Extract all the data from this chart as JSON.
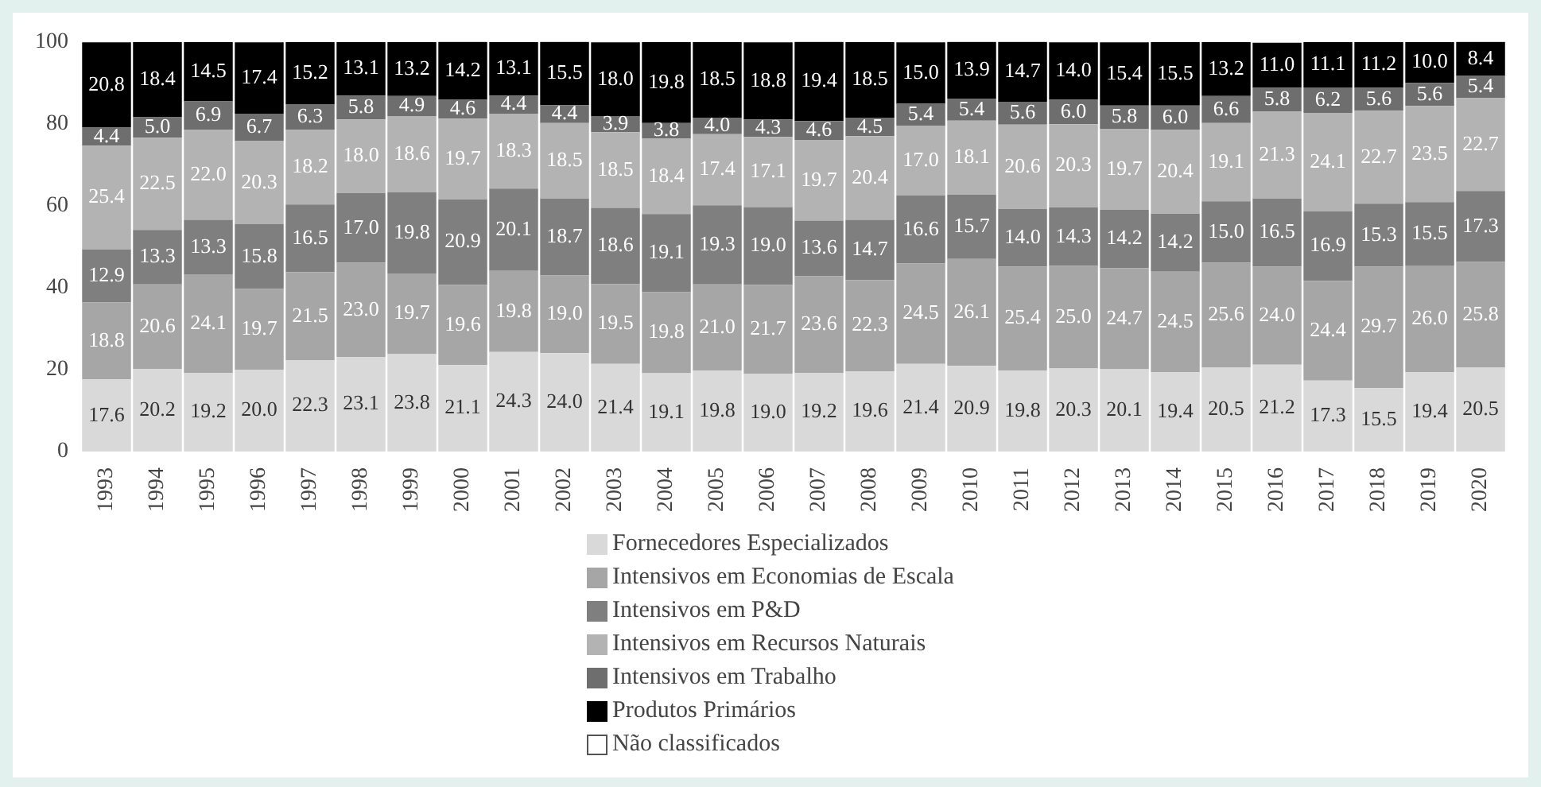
{
  "chart_data": {
    "type": "bar",
    "stacked": true,
    "legend": "bottom",
    "grid": false,
    "ylim": [
      0,
      100
    ],
    "yticks": [
      0,
      20,
      40,
      60,
      80,
      100
    ],
    "categories": [
      "1993",
      "1994",
      "1995",
      "1996",
      "1997",
      "1998",
      "1999",
      "2000",
      "2001",
      "2002",
      "2003",
      "2004",
      "2005",
      "2006",
      "2007",
      "2008",
      "2009",
      "2010",
      "2011",
      "2012",
      "2013",
      "2014",
      "2015",
      "2016",
      "2017",
      "2018",
      "2019",
      "2020"
    ],
    "series": [
      {
        "name": "Fornecedores Especializados",
        "color": "#d9d9d9",
        "values": [
          17.6,
          20.2,
          19.2,
          20.0,
          22.3,
          23.1,
          23.8,
          21.1,
          24.3,
          24.0,
          21.4,
          19.1,
          19.8,
          19.0,
          19.2,
          19.6,
          21.4,
          20.9,
          19.8,
          20.3,
          20.1,
          19.4,
          20.5,
          21.2,
          17.3,
          15.5,
          19.4,
          20.5
        ],
        "value_labels": [
          "17.6",
          "20.2",
          "19.2",
          "20.0",
          "22.3",
          "23.1",
          "23.8",
          "21.1",
          "24.3",
          "24.0",
          "21.4",
          "19.1",
          "19.8",
          "19.0",
          "19.2",
          "19.6",
          "21.4",
          "20.9",
          "19.8",
          "20.3",
          "20.1",
          "19.4",
          "20.5",
          "21.2",
          "17.3",
          "15.5",
          "19.4",
          "20.5"
        ]
      },
      {
        "name": "Intensivos em Economias de Escala",
        "color": "#a6a6a6",
        "values": [
          18.8,
          20.6,
          24.1,
          19.7,
          21.5,
          23.0,
          19.7,
          19.6,
          19.8,
          19.0,
          19.5,
          19.8,
          21.0,
          21.7,
          23.6,
          22.3,
          24.5,
          26.1,
          25.4,
          25.0,
          24.7,
          24.5,
          25.6,
          24.0,
          24.4,
          29.7,
          26.0,
          25.8
        ],
        "value_labels": [
          "18.8",
          "20.6",
          "24.1",
          "19.7",
          "21.5",
          "23.0",
          "19.7",
          "19.6",
          "19.8",
          "19.0",
          "19.5",
          "19.8",
          "21.0",
          "21.7",
          "23.6",
          "22.3",
          "24.5",
          "26.1",
          "25.4",
          "25.0",
          "24.7",
          "24.5",
          "25.6",
          "24.0",
          "24.4",
          "29.7",
          "26.0",
          "25.8"
        ]
      },
      {
        "name": "Intensivos em P&D",
        "color": "#7f7f7f",
        "values": [
          12.9,
          13.3,
          13.3,
          15.8,
          16.5,
          17.0,
          19.8,
          20.9,
          20.1,
          18.7,
          18.6,
          19.1,
          19.3,
          19.0,
          13.6,
          14.7,
          16.6,
          15.7,
          14.0,
          14.3,
          14.2,
          14.2,
          15.0,
          16.5,
          16.9,
          15.3,
          15.5,
          17.3
        ],
        "value_labels": [
          "12.9",
          "13.3",
          "13.3",
          "15.8",
          "16.5",
          "17.0",
          "19.8",
          "20.9",
          "20.1",
          "18.7",
          "18.6",
          "19.1",
          "19.3",
          "19.0",
          "13.6",
          "14.7",
          "16.6",
          "15.7",
          "14.0",
          "14.3",
          "14.2",
          "14.2",
          "15.0",
          "16.5",
          "16.9",
          "15.3",
          "15.5",
          "17.3"
        ]
      },
      {
        "name": "Intensivos em Recursos Naturais",
        "color": "#b3b3b3",
        "values": [
          25.4,
          22.5,
          22.0,
          20.3,
          18.2,
          18.0,
          18.6,
          19.7,
          18.3,
          18.5,
          18.5,
          18.4,
          17.4,
          17.1,
          19.7,
          20.4,
          17.0,
          18.1,
          20.6,
          20.3,
          19.7,
          20.4,
          19.1,
          21.3,
          24.1,
          22.7,
          23.5,
          22.7
        ],
        "value_labels": [
          "25.4",
          "22.5",
          "22.0",
          "20.3",
          "18.2",
          "18.0",
          "18.6",
          "19.7",
          "18.3",
          "18.5",
          "18.5",
          "18.4",
          "17.4",
          "17.1",
          "19.7",
          "20.4",
          "17.0",
          "18.1",
          "20.6",
          "20.3",
          "19.7",
          "20.4",
          "19.1",
          "21.3",
          "24.1",
          "22.7",
          "23.5",
          "22.7"
        ]
      },
      {
        "name": "Intensivos em Trabalho",
        "color": "#6e6e6e",
        "values": [
          4.4,
          5.0,
          6.9,
          6.7,
          6.3,
          5.8,
          4.9,
          4.6,
          4.4,
          4.4,
          3.9,
          3.8,
          4.0,
          4.3,
          4.6,
          4.5,
          5.4,
          5.4,
          5.6,
          6.0,
          5.8,
          6.0,
          6.6,
          5.8,
          6.2,
          5.6,
          5.6,
          5.4
        ],
        "value_labels": [
          "4.4",
          "5.0",
          "6.9",
          "6.7",
          "6.3",
          "5.8",
          "4.9",
          "4.6",
          "4.4",
          "4.4",
          "3.9",
          "3.8",
          "4.0",
          "4.3",
          "4.6",
          "4.5",
          "5.4",
          "5.4",
          "5.6",
          "6.0",
          "5.8",
          "6.0",
          "6.6",
          "5.8",
          "6.2",
          "5.6",
          "5.6",
          "5.4"
        ]
      },
      {
        "name": "Produtos Primários",
        "color": "#000000",
        "values": [
          20.8,
          18.4,
          14.5,
          17.4,
          15.2,
          13.1,
          13.2,
          14.2,
          13.1,
          15.5,
          18.0,
          19.8,
          18.5,
          18.8,
          19.4,
          18.5,
          15.0,
          13.9,
          14.7,
          14.0,
          15.4,
          15.5,
          13.2,
          11.0,
          11.1,
          11.2,
          10.0,
          8.4
        ],
        "value_labels": [
          "20.8",
          "18.4",
          "14.5",
          "17.4",
          "15.2",
          "13.1",
          "13.2",
          "14.2",
          "13.1",
          "15.5",
          "18.0",
          "19.8",
          "18.5",
          "18.8",
          "19.4",
          "18.5",
          "15.0",
          "13.9",
          "14.7",
          "14.0",
          "15.4",
          "15.5",
          "13.2",
          "11.0",
          "11.1",
          "11.2",
          "10.0",
          "8.4"
        ]
      },
      {
        "name": "Não classificados",
        "color": "#ffffff",
        "values": [
          null,
          null,
          null,
          null,
          null,
          null,
          null,
          null,
          null,
          null,
          null,
          null,
          null,
          null,
          null,
          null,
          null,
          null,
          null,
          null,
          null,
          null,
          null,
          null,
          null,
          null,
          null,
          null
        ]
      }
    ]
  }
}
